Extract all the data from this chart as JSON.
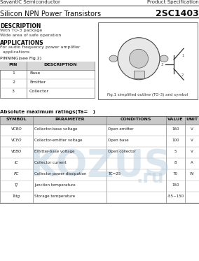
{
  "company": "SavantIC Semiconductor",
  "doc_type": "Product Specification",
  "part_number": "2SC1403",
  "title": "Silicon NPN Power Transistors",
  "description_header": "DESCRIPTION",
  "description_lines": [
    "With TO-3 package",
    "Wide area of safe operation"
  ],
  "applications_header": "APPLICATIONS",
  "applications_lines": [
    "For audio frequency power amplifier",
    "  applications"
  ],
  "pinning_header": "PINNING(see Fig.2)",
  "pin_rows": [
    [
      "1",
      "Base"
    ],
    [
      "2",
      "Emitter"
    ],
    [
      "3",
      "Collector"
    ]
  ],
  "fig_caption": "Fig.1 simplified outline (TO-3) and symbol",
  "abs_max_header": "Absolute maximum ratings(Ta=   )",
  "table_headers": [
    "SYMBOL",
    "PARAMETER",
    "CONDITIONS",
    "VALUE",
    "UNIT"
  ],
  "symbols": [
    "VCBO",
    "VCEO",
    "VEBO",
    "IC",
    "PC",
    "TJ",
    "Tstg"
  ],
  "params": [
    "Collector-base voltage",
    "Collector-emitter voltage",
    "Emitter-base voltage",
    "Collector current",
    "Collector power dissipation",
    "Junction temperature",
    "Storage temperature"
  ],
  "conditions": [
    "Open emitter",
    "Open base",
    "Open collector",
    "",
    "TC=25",
    "",
    ""
  ],
  "values": [
    "160",
    "100",
    "5",
    "8",
    "70",
    "150",
    "-55~150"
  ],
  "units": [
    "V",
    "V",
    "V",
    "A",
    "W",
    "",
    ""
  ],
  "bg_color": "#ffffff",
  "watermark_text": "KOZUS",
  "watermark_ru": ".ru"
}
